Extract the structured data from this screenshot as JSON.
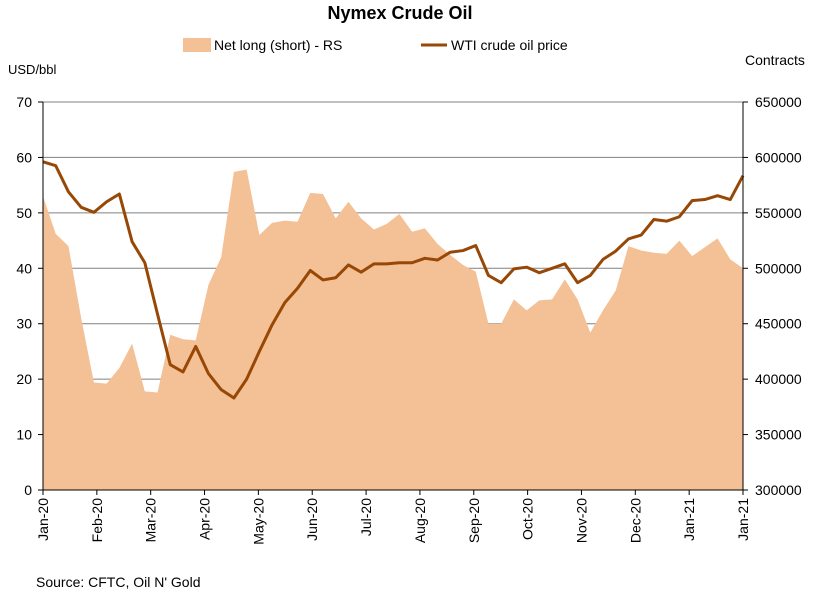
{
  "chart_data": {
    "type": "line+area",
    "title": "Nymex Crude Oil",
    "left_axis_label": "USD/bbl",
    "right_axis_label": "Contracts",
    "source": "Source: CFTC, Oil N' Gold",
    "y_left": {
      "min": 0,
      "max": 70,
      "ticks": [
        "0",
        "10",
        "20",
        "30",
        "40",
        "50",
        "60",
        "70"
      ]
    },
    "y_right": {
      "min": 300000,
      "max": 650000,
      "ticks": [
        "300000",
        "350000",
        "400000",
        "450000",
        "500000",
        "550000",
        "600000",
        "650000"
      ]
    },
    "x_ticks": [
      "Jan-20",
      "Feb-20",
      "Mar-20",
      "Apr-20",
      "May-20",
      "Jun-20",
      "Jul-20",
      "Aug-20",
      "Sep-20",
      "Oct-20",
      "Nov-20",
      "Dec-20",
      "Jan-21",
      "Jan-21"
    ],
    "x_dates": [
      "2020-01-07",
      "2020-01-14",
      "2020-01-21",
      "2020-01-28",
      "2020-02-04",
      "2020-02-11",
      "2020-02-18",
      "2020-02-25",
      "2020-03-03",
      "2020-03-10",
      "2020-03-17",
      "2020-03-24",
      "2020-03-31",
      "2020-04-07",
      "2020-04-14",
      "2020-04-21",
      "2020-04-28",
      "2020-05-05",
      "2020-05-12",
      "2020-05-19",
      "2020-05-26",
      "2020-06-02",
      "2020-06-09",
      "2020-06-16",
      "2020-06-23",
      "2020-06-30",
      "2020-07-07",
      "2020-07-14",
      "2020-07-21",
      "2020-07-28",
      "2020-08-04",
      "2020-08-11",
      "2020-08-18",
      "2020-08-25",
      "2020-09-01",
      "2020-09-08",
      "2020-09-15",
      "2020-09-22",
      "2020-09-29",
      "2020-10-06",
      "2020-10-13",
      "2020-10-20",
      "2020-10-27",
      "2020-11-03",
      "2020-11-10",
      "2020-11-17",
      "2020-11-24",
      "2020-12-01",
      "2020-12-08",
      "2020-12-15",
      "2020-12-22",
      "2020-12-29",
      "2021-01-05",
      "2021-01-12",
      "2021-01-19",
      "2021-01-26"
    ],
    "series": [
      {
        "name": "Net long (short) - RS",
        "kind": "area",
        "axis": "right",
        "color": "#f4c095",
        "values": [
          565000,
          531000,
          520000,
          455000,
          397000,
          396000,
          410000,
          432000,
          389000,
          388000,
          440000,
          436000,
          435000,
          485000,
          510000,
          587000,
          589000,
          530000,
          541000,
          543000,
          542000,
          568000,
          567000,
          545000,
          560000,
          545000,
          535000,
          540000,
          549000,
          533000,
          536000,
          522000,
          512000,
          503000,
          497000,
          450000,
          450000,
          472000,
          462000,
          471000,
          472000,
          490000,
          472000,
          442000,
          462000,
          480000,
          520000,
          516000,
          514000,
          513000,
          525000,
          511000,
          519000,
          527000,
          508000,
          500000
        ]
      },
      {
        "name": "WTI crude oil price",
        "kind": "line",
        "axis": "left",
        "color": "#974806",
        "values": [
          59.2,
          58.5,
          53.8,
          51.0,
          50.1,
          52.0,
          53.4,
          44.8,
          41.0,
          31.7,
          22.6,
          21.3,
          25.9,
          21.0,
          18.1,
          16.6,
          20.0,
          25.0,
          29.8,
          33.8,
          36.4,
          39.6,
          37.9,
          38.3,
          40.6,
          39.3,
          40.8,
          40.8,
          41.0,
          41.0,
          41.8,
          41.5,
          42.9,
          43.2,
          44.1,
          38.7,
          37.4,
          39.9,
          40.2,
          39.2,
          40.0,
          40.8,
          37.4,
          38.7,
          41.6,
          43.1,
          45.3,
          46.0,
          48.8,
          48.5,
          49.3,
          52.2,
          52.4,
          53.1,
          52.4,
          56.7
        ]
      }
    ]
  }
}
